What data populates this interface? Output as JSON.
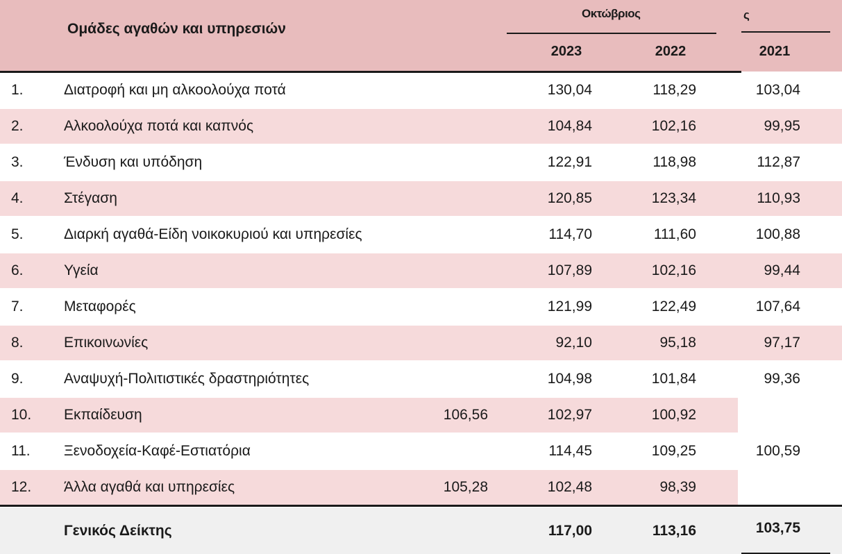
{
  "table": {
    "group_header": "Ομάδες αγαθών και υπηρεσιών",
    "month_header": "Οκτώβριος",
    "month_header_tail": "ς",
    "years": [
      "2023",
      "2022",
      "2021"
    ],
    "rows": [
      {
        "num": "1.",
        "label": "Διατροφή και μη αλκοολούχα ποτά",
        "v2023": "130,04",
        "v2022": "118,29",
        "v2021": "103,04"
      },
      {
        "num": "2.",
        "label": "Αλκοολούχα ποτά και καπνός",
        "v2023": "104,84",
        "v2022": "102,16",
        "v2021": "99,95"
      },
      {
        "num": "3.",
        "label": "Ένδυση και υπόδηση",
        "v2023": "122,91",
        "v2022": "118,98",
        "v2021": "112,87"
      },
      {
        "num": "4.",
        "label": "Στέγαση",
        "v2023": "120,85",
        "v2022": "123,34",
        "v2021": "110,93"
      },
      {
        "num": "5.",
        "label": "Διαρκή αγαθά-Είδη νοικοκυριού και υπηρεσίες",
        "v2023": "114,70",
        "v2022": "111,60",
        "v2021": "100,88"
      },
      {
        "num": "6.",
        "label": "Υγεία",
        "v2023": "107,89",
        "v2022": "102,16",
        "v2021": "99,44"
      },
      {
        "num": "7.",
        "label": "Μεταφορές",
        "v2023": "121,99",
        "v2022": "122,49",
        "v2021": "107,64"
      },
      {
        "num": "8.",
        "label": "Επικοινωνίες",
        "v2023": "92,10",
        "v2022": "95,18",
        "v2021": "97,17"
      },
      {
        "num": "9.",
        "label": "Αναψυχή-Πολιτιστικές δραστηριότητες",
        "v2023": "104,98",
        "v2022": "101,84",
        "v2021": "99,36"
      },
      {
        "num": "10.",
        "label": "Εκπαίδευση",
        "v2023": "106,56",
        "v2022": "102,97",
        "v2021": "100,92"
      },
      {
        "num": "11.",
        "label": "Ξενοδοχεία-Καφέ-Εστιατόρια",
        "v2023": "114,45",
        "v2022": "109,25",
        "v2021": "100,59"
      },
      {
        "num": "12.",
        "label": "Άλλα αγαθά και υπηρεσίες",
        "v2023": "105,28",
        "v2022": "102,48",
        "v2021": "98,39"
      }
    ],
    "total": {
      "label": "Γενικός Δείκτης",
      "v2023": "117,00",
      "v2022": "113,16",
      "v2021": "103,75"
    }
  }
}
